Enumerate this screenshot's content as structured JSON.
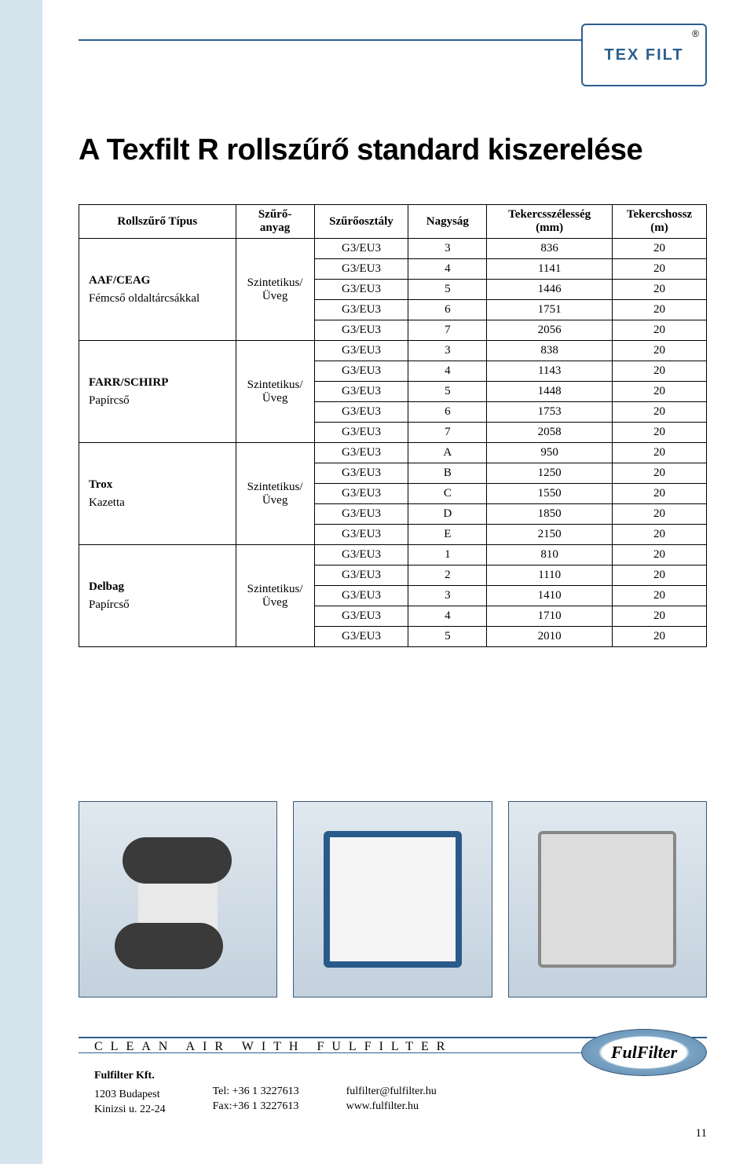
{
  "logo": {
    "text": "TEX FILT",
    "reg": "®"
  },
  "title": "A Texfilt R rollszűrő standard kiszerelése",
  "columns": {
    "c1": "Rollszűrő Típus",
    "c2": "Szűrő-\nanyag",
    "c3": "Szűrőosztály",
    "c4": "Nagyság",
    "c5": "Tekercsszélesség\n(mm)",
    "c6": "Tekercshossz\n(m)"
  },
  "groups": [
    {
      "type_main": "AAF/CEAG",
      "type_sub": "Fémcső oldaltárcsákkal",
      "material": "Szintetikus/\nÜveg",
      "rows": [
        [
          "G3/EU3",
          "3",
          "836",
          "20"
        ],
        [
          "G3/EU3",
          "4",
          "1141",
          "20"
        ],
        [
          "G3/EU3",
          "5",
          "1446",
          "20"
        ],
        [
          "G3/EU3",
          "6",
          "1751",
          "20"
        ],
        [
          "G3/EU3",
          "7",
          "2056",
          "20"
        ]
      ]
    },
    {
      "type_main": "FARR/SCHIRP",
      "type_sub": "Papírcső",
      "material": "Szintetikus/\nÜveg",
      "rows": [
        [
          "G3/EU3",
          "3",
          "838",
          "20"
        ],
        [
          "G3/EU3",
          "4",
          "1143",
          "20"
        ],
        [
          "G3/EU3",
          "5",
          "1448",
          "20"
        ],
        [
          "G3/EU3",
          "6",
          "1753",
          "20"
        ],
        [
          "G3/EU3",
          "7",
          "2058",
          "20"
        ]
      ]
    },
    {
      "type_main": "Trox",
      "type_sub": "Kazetta",
      "material": "Szintetikus/\nÜveg",
      "rows": [
        [
          "G3/EU3",
          "A",
          "950",
          "20"
        ],
        [
          "G3/EU3",
          "B",
          "1250",
          "20"
        ],
        [
          "G3/EU3",
          "C",
          "1550",
          "20"
        ],
        [
          "G3/EU3",
          "D",
          "1850",
          "20"
        ],
        [
          "G3/EU3",
          "E",
          "2150",
          "20"
        ]
      ]
    },
    {
      "type_main": "Delbag",
      "type_sub": "Papírcső",
      "material": "Szintetikus/\nÜveg",
      "rows": [
        [
          "G3/EU3",
          "1",
          "810",
          "20"
        ],
        [
          "G3/EU3",
          "2",
          "1110",
          "20"
        ],
        [
          "G3/EU3",
          "3",
          "1410",
          "20"
        ],
        [
          "G3/EU3",
          "4",
          "1710",
          "20"
        ],
        [
          "G3/EU3",
          "5",
          "2010",
          "20"
        ]
      ]
    }
  ],
  "slogan": "CLEAN AIR WITH FULFILTER",
  "brand_oval": "FulFilter",
  "footer": {
    "company": "Fulfilter Kft.",
    "addr1": "1203 Budapest",
    "addr2": "Kinizsi u. 22-24",
    "tel": "Tel: +36 1 3227613",
    "fax": "Fax:+36 1 3227613",
    "email": "fulfilter@fulfilter.hu",
    "web": "www.fulfilter.hu"
  },
  "page_number": "11",
  "colors": {
    "stripe": "#d5e3ed",
    "line": "#2b5f8e",
    "text": "#000000"
  }
}
